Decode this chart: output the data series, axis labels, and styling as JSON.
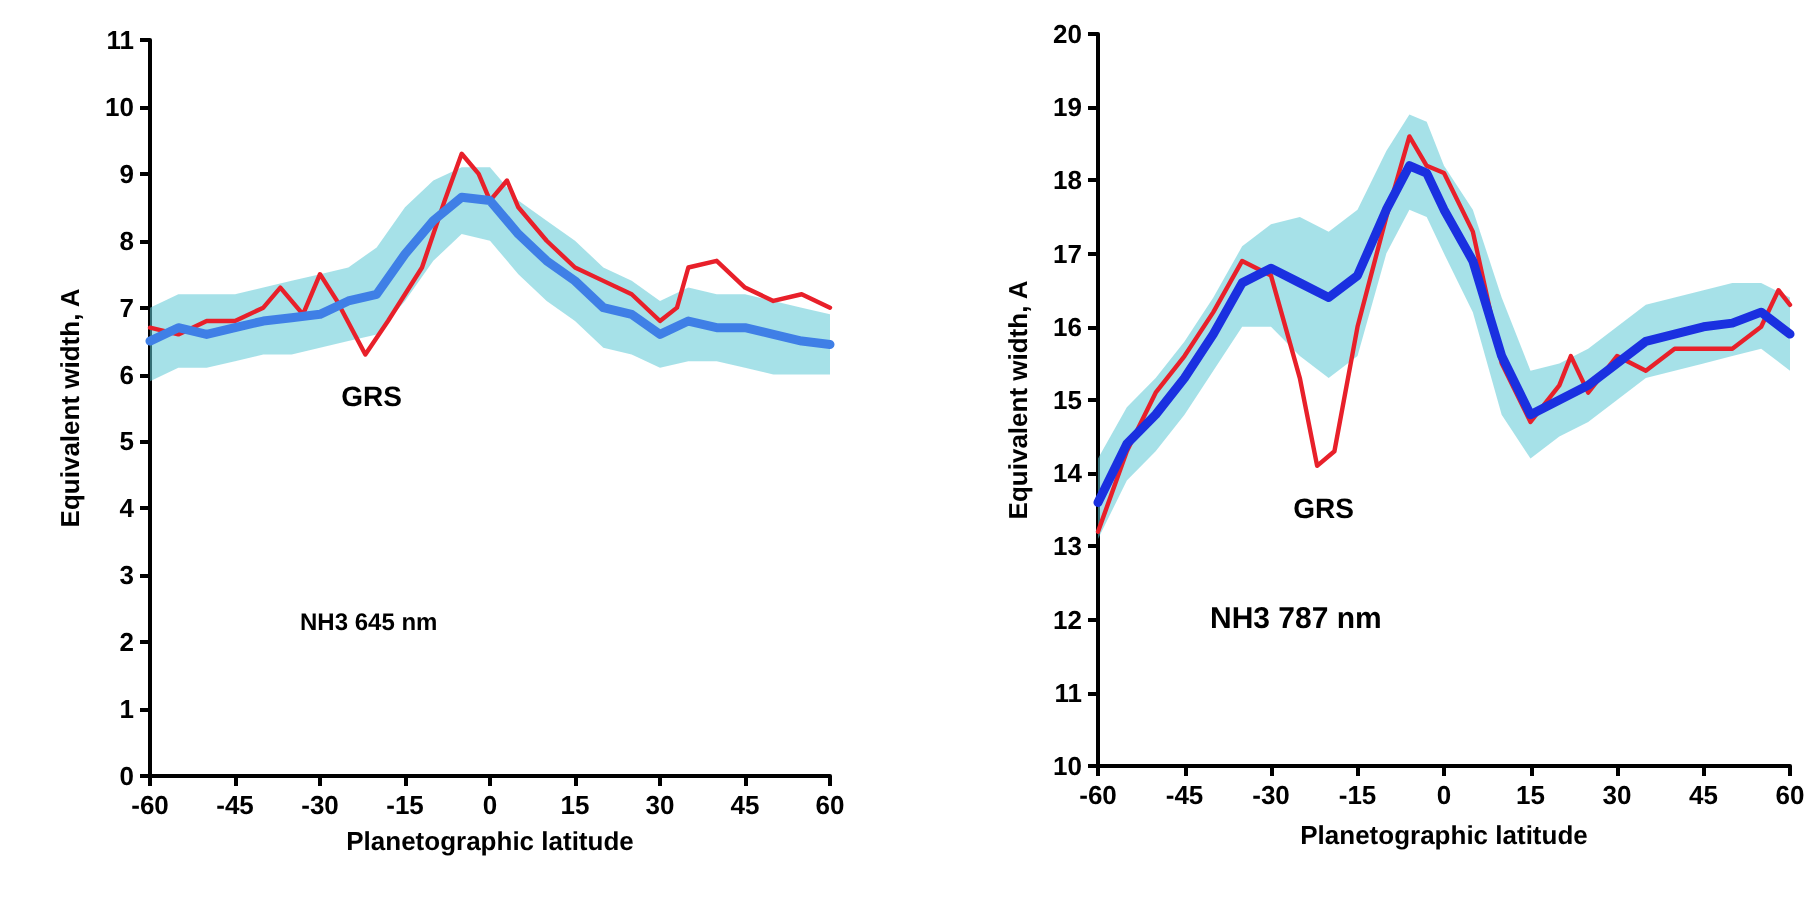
{
  "chart_data": [
    {
      "type": "line",
      "xlabel": "Planetographic latitude",
      "ylabel": "Equivalent width, A",
      "xlim": [
        -60,
        60
      ],
      "xticks": [
        -60,
        -45,
        -30,
        -15,
        0,
        15,
        30,
        45,
        60
      ],
      "ylim": [
        0,
        11
      ],
      "yticks": [
        0,
        1,
        2,
        3,
        4,
        5,
        6,
        7,
        8,
        9,
        10,
        11
      ],
      "grid": false,
      "marker": "none",
      "line_style": "solid",
      "annotations": [
        {
          "text": "GRS",
          "x": -22,
          "y": 6.3
        },
        "NH3 645 nm"
      ],
      "series": [
        {
          "color": "#e8202a",
          "x": [
            -60,
            -55,
            -50,
            -45,
            -40,
            -37,
            -33,
            -30,
            -27,
            -22,
            -18,
            -12,
            -8,
            -5,
            -2,
            0,
            3,
            5,
            10,
            15,
            20,
            25,
            30,
            33,
            35,
            40,
            45,
            50,
            55,
            60
          ],
          "values": [
            6.7,
            6.6,
            6.8,
            6.8,
            7.0,
            7.3,
            6.9,
            7.5,
            7.1,
            6.3,
            6.8,
            7.6,
            8.6,
            9.3,
            9.0,
            8.6,
            8.9,
            8.5,
            8.0,
            7.6,
            7.4,
            7.2,
            6.8,
            7.0,
            7.6,
            7.7,
            7.3,
            7.1,
            7.2,
            7.0
          ]
        },
        {
          "color": "#3f7fe6",
          "x": [
            -60,
            -55,
            -50,
            -45,
            -40,
            -35,
            -30,
            -25,
            -20,
            -15,
            -10,
            -5,
            0,
            5,
            10,
            15,
            20,
            25,
            30,
            35,
            40,
            45,
            50,
            55,
            60
          ],
          "values": [
            6.5,
            6.7,
            6.6,
            6.7,
            6.8,
            6.85,
            6.9,
            7.1,
            7.2,
            7.8,
            8.3,
            8.65,
            8.6,
            8.1,
            7.7,
            7.4,
            7.0,
            6.9,
            6.6,
            6.8,
            6.7,
            6.7,
            6.6,
            6.5,
            6.45
          ],
          "lower": [
            5.9,
            6.1,
            6.1,
            6.2,
            6.3,
            6.3,
            6.4,
            6.5,
            6.6,
            7.1,
            7.7,
            8.1,
            8.0,
            7.5,
            7.1,
            6.8,
            6.4,
            6.3,
            6.1,
            6.2,
            6.2,
            6.1,
            6.0,
            6.0,
            6.0
          ],
          "upper": [
            7.0,
            7.2,
            7.2,
            7.2,
            7.3,
            7.4,
            7.5,
            7.6,
            7.9,
            8.5,
            8.9,
            9.1,
            9.1,
            8.6,
            8.3,
            8.0,
            7.6,
            7.4,
            7.1,
            7.3,
            7.2,
            7.2,
            7.1,
            7.0,
            6.9
          ]
        }
      ]
    },
    {
      "type": "line",
      "xlabel": "Planetographic latitude",
      "ylabel": "Equivalent width, A",
      "xlim": [
        -60,
        60
      ],
      "xticks": [
        -60,
        -45,
        -30,
        -15,
        0,
        15,
        30,
        45,
        60
      ],
      "ylim": [
        10,
        20
      ],
      "yticks": [
        10,
        11,
        12,
        13,
        14,
        15,
        16,
        17,
        18,
        19,
        20
      ],
      "grid": false,
      "marker": "none",
      "line_style": "solid",
      "annotations": [
        {
          "text": "GRS",
          "x": -22,
          "y": 14.1
        },
        "NH3 787 nm"
      ],
      "series": [
        {
          "color": "#e8202a",
          "x": [
            -60,
            -55,
            -50,
            -45,
            -40,
            -35,
            -30,
            -25,
            -22,
            -19,
            -15,
            -10,
            -6,
            -3,
            0,
            5,
            10,
            15,
            20,
            22,
            25,
            30,
            35,
            40,
            45,
            50,
            55,
            58,
            60
          ],
          "values": [
            13.2,
            14.3,
            15.1,
            15.6,
            16.2,
            16.9,
            16.7,
            15.3,
            14.1,
            14.3,
            16.0,
            17.5,
            18.6,
            18.2,
            18.1,
            17.3,
            15.5,
            14.7,
            15.2,
            15.6,
            15.1,
            15.6,
            15.4,
            15.7,
            15.7,
            15.7,
            16.0,
            16.5,
            16.3
          ]
        },
        {
          "color": "#1a30e0",
          "x": [
            -60,
            -55,
            -50,
            -45,
            -40,
            -35,
            -30,
            -25,
            -20,
            -15,
            -10,
            -6,
            -3,
            0,
            5,
            10,
            15,
            20,
            25,
            30,
            35,
            40,
            45,
            50,
            55,
            60
          ],
          "values": [
            13.6,
            14.4,
            14.8,
            15.3,
            15.9,
            16.6,
            16.8,
            16.6,
            16.4,
            16.7,
            17.6,
            18.2,
            18.1,
            17.6,
            16.9,
            15.6,
            14.8,
            15.0,
            15.2,
            15.5,
            15.8,
            15.9,
            16.0,
            16.05,
            16.2,
            15.9
          ],
          "lower": [
            13.1,
            13.9,
            14.3,
            14.8,
            15.4,
            16.0,
            16.0,
            15.6,
            15.3,
            15.6,
            17.0,
            17.6,
            17.5,
            17.0,
            16.2,
            14.8,
            14.2,
            14.5,
            14.7,
            15.0,
            15.3,
            15.4,
            15.5,
            15.6,
            15.7,
            15.4
          ],
          "upper": [
            14.2,
            14.9,
            15.3,
            15.8,
            16.4,
            17.1,
            17.4,
            17.5,
            17.3,
            17.6,
            18.4,
            18.9,
            18.8,
            18.2,
            17.6,
            16.4,
            15.4,
            15.5,
            15.7,
            16.0,
            16.3,
            16.4,
            16.5,
            16.6,
            16.6,
            16.4
          ]
        }
      ]
    }
  ]
}
